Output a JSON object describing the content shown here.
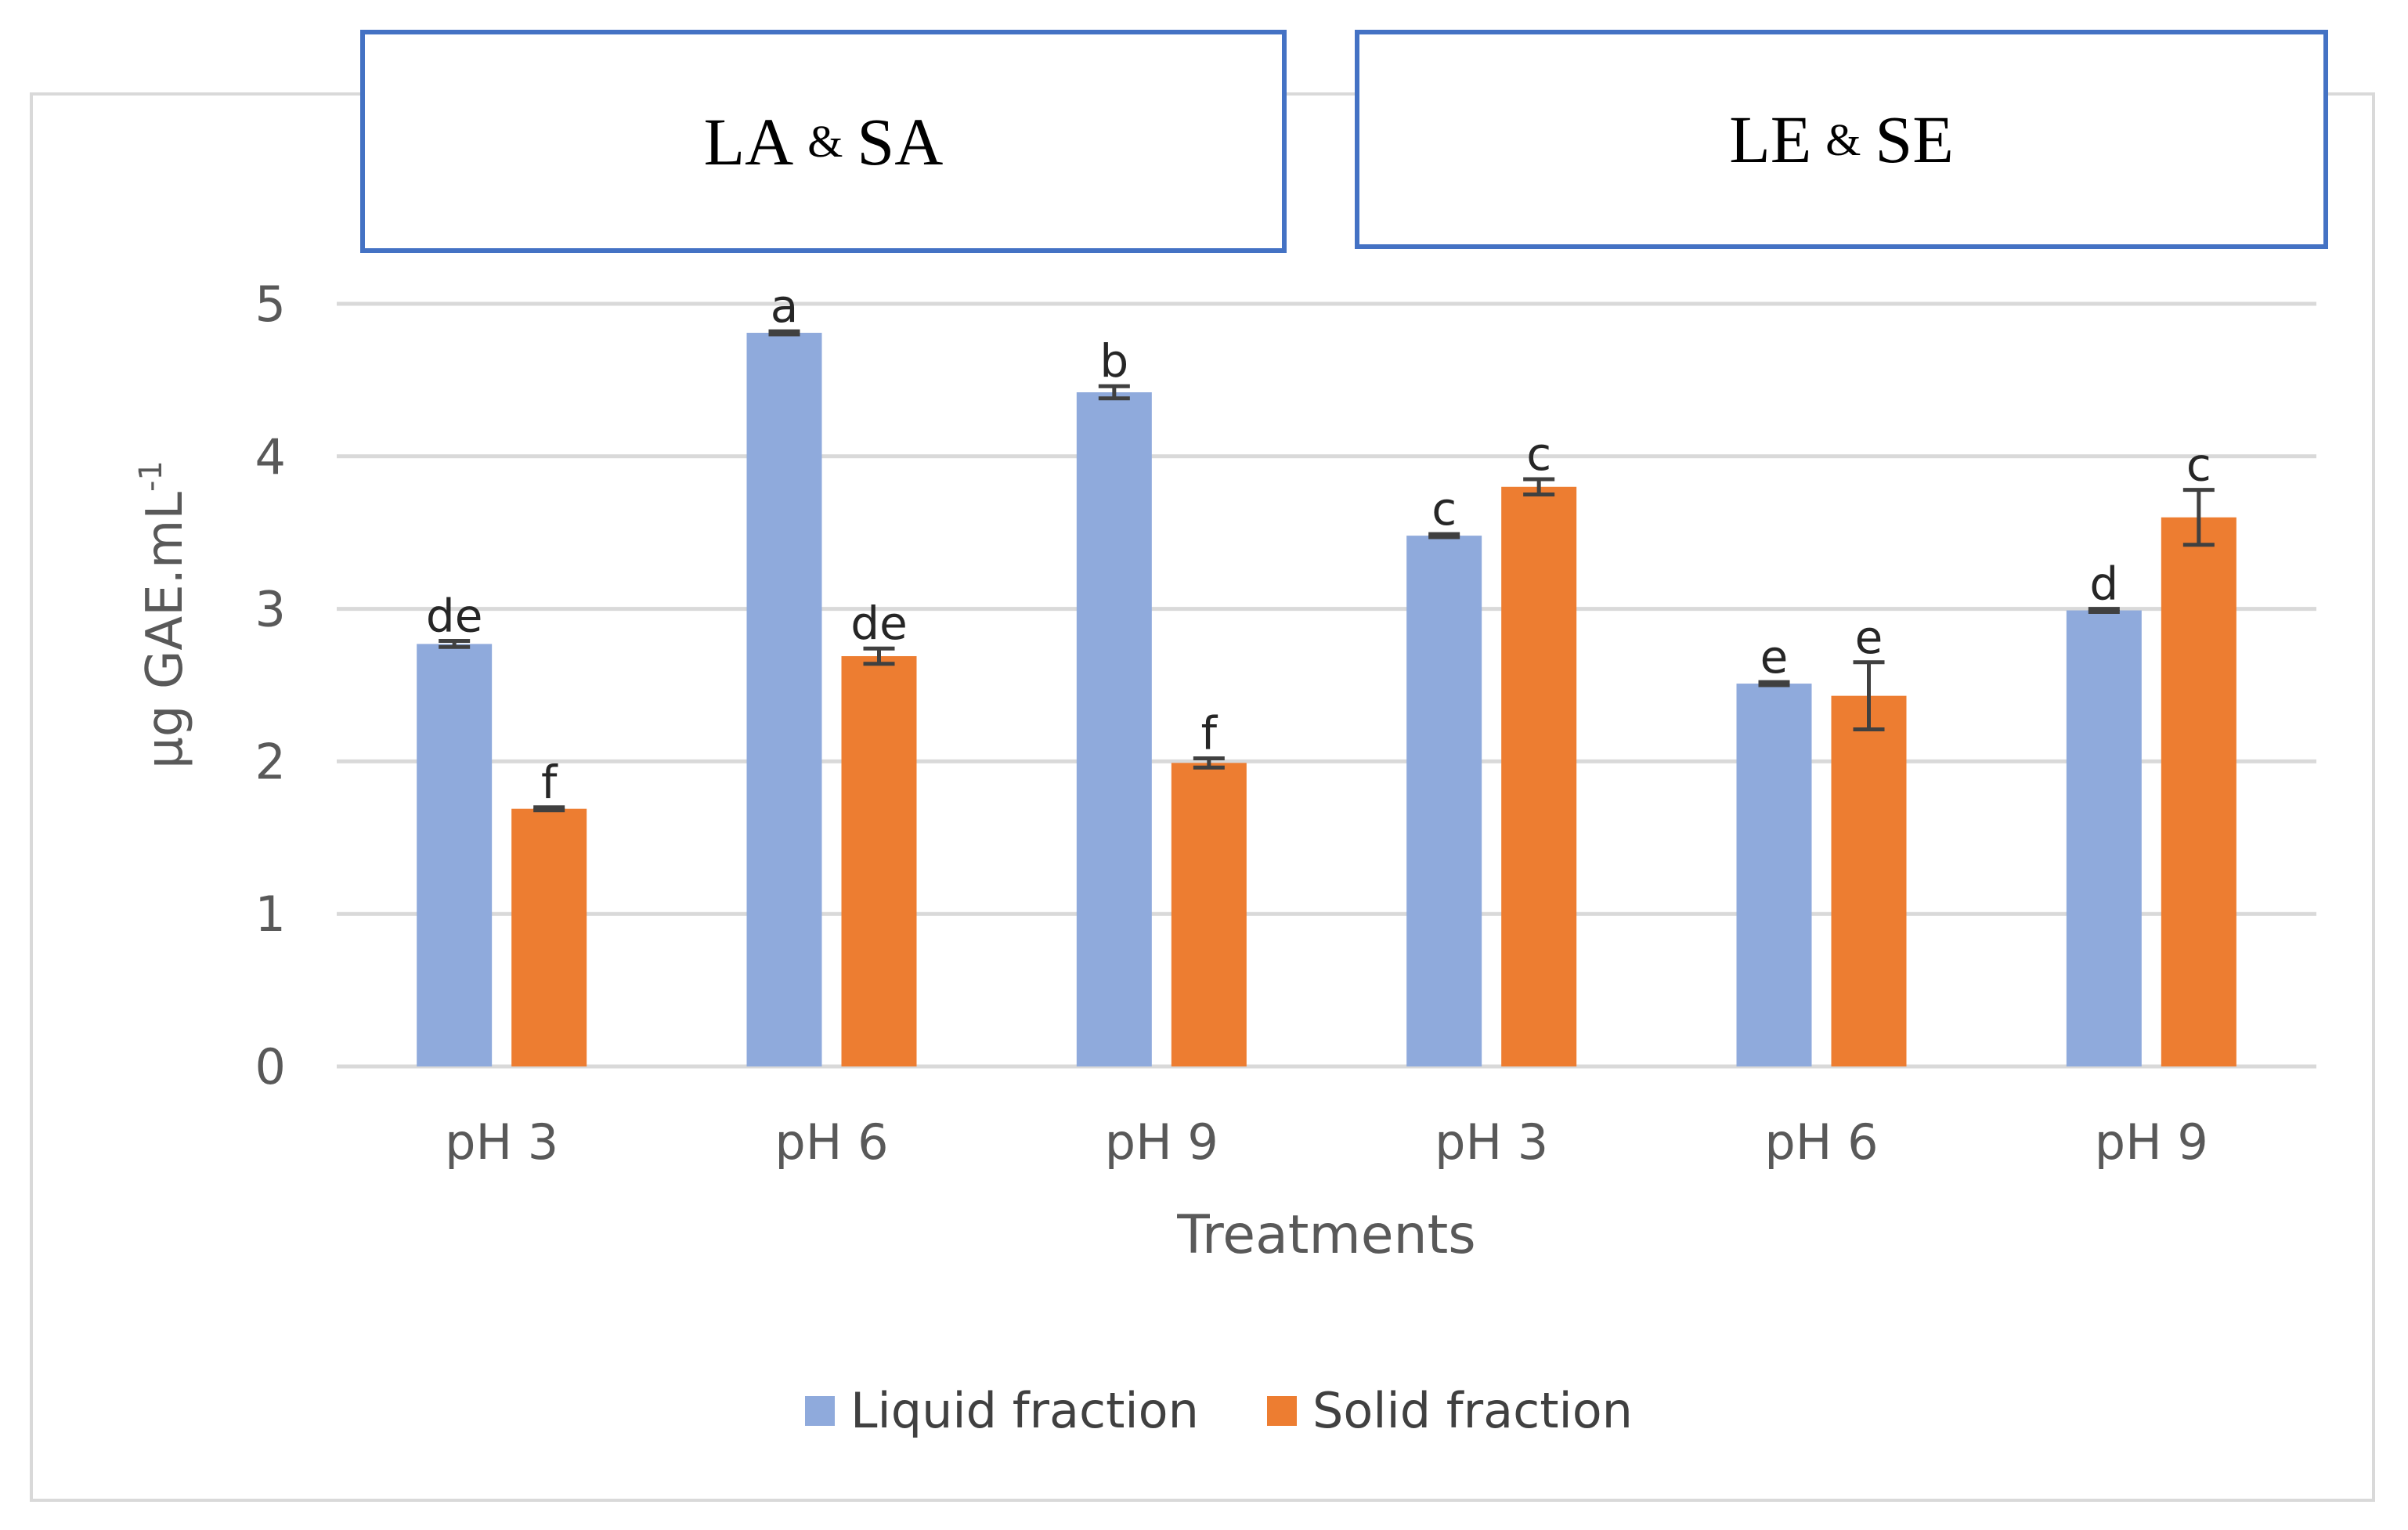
{
  "chart_data": {
    "type": "bar",
    "group_labels": [
      "LA",
      "SA",
      "LE",
      "SE"
    ],
    "group_connector": "&",
    "categories": [
      "pH 3",
      "pH 6",
      "pH 9",
      "pH 3",
      "pH 6",
      "pH 9"
    ],
    "series": [
      {
        "name": "Liquid fraction",
        "color": "#8faadc",
        "values": [
          2.77,
          4.81,
          4.42,
          3.48,
          2.51,
          2.99
        ],
        "errors": [
          0.02,
          0.01,
          0.04,
          0.01,
          0.01,
          0.01
        ],
        "letters": [
          "de",
          "a",
          "b",
          "c",
          "e",
          "d"
        ]
      },
      {
        "name": "Solid fraction",
        "color": "#ed7d31",
        "values": [
          1.69,
          2.69,
          1.99,
          3.8,
          2.43,
          3.6
        ],
        "errors": [
          0.01,
          0.05,
          0.03,
          0.05,
          0.22,
          0.18
        ],
        "letters": [
          "f",
          "de",
          "f",
          "c",
          "e",
          "c"
        ]
      }
    ],
    "xlabel": "Treatments",
    "ylabel": "µg GAE.mL",
    "ylabel_superscript": "-1",
    "ylim": [
      0,
      5
    ],
    "yticks": [
      "0",
      "1",
      "2",
      "3",
      "4",
      "5"
    ],
    "grid": true,
    "legend_position": "bottom"
  }
}
